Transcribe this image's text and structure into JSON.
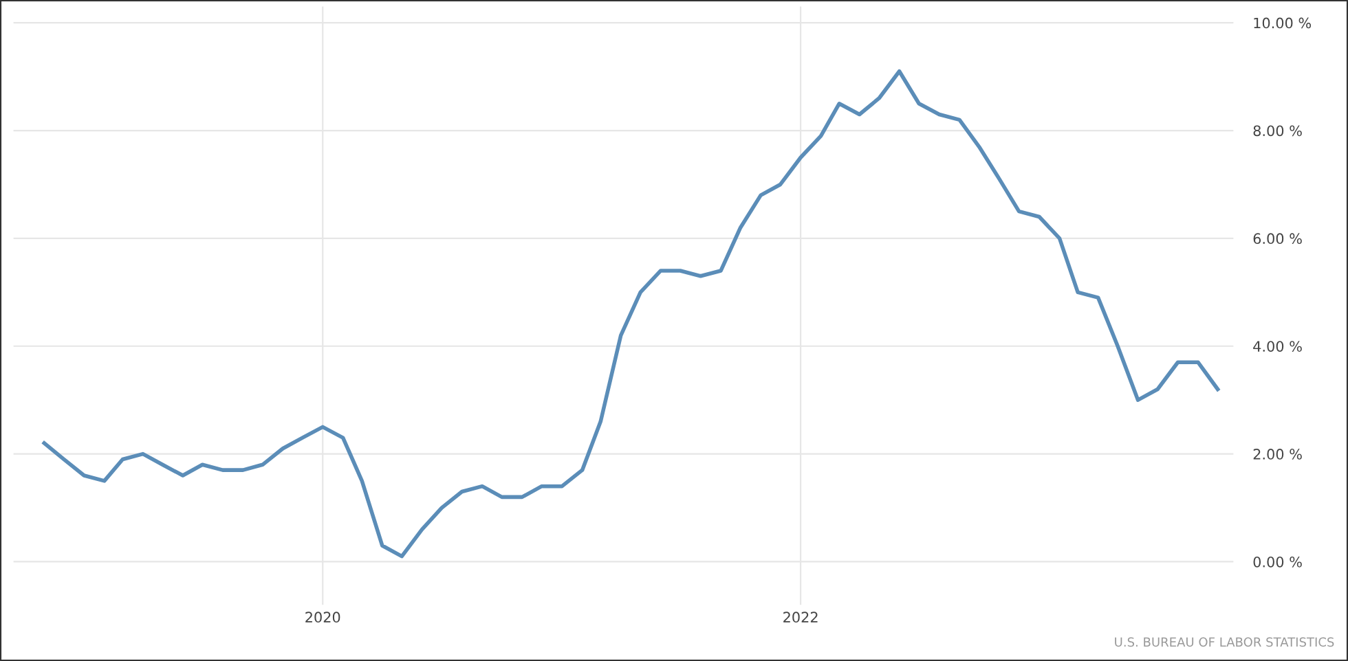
{
  "chart_data": {
    "type": "line",
    "x": [
      "2018-11",
      "2018-12",
      "2019-01",
      "2019-02",
      "2019-03",
      "2019-04",
      "2019-05",
      "2019-06",
      "2019-07",
      "2019-08",
      "2019-09",
      "2019-10",
      "2019-11",
      "2019-12",
      "2020-01",
      "2020-02",
      "2020-03",
      "2020-04",
      "2020-05",
      "2020-06",
      "2020-07",
      "2020-08",
      "2020-09",
      "2020-10",
      "2020-11",
      "2020-12",
      "2021-01",
      "2021-02",
      "2021-03",
      "2021-04",
      "2021-05",
      "2021-06",
      "2021-07",
      "2021-08",
      "2021-09",
      "2021-10",
      "2021-11",
      "2021-12",
      "2022-01",
      "2022-02",
      "2022-03",
      "2022-04",
      "2022-05",
      "2022-06",
      "2022-07",
      "2022-08",
      "2022-09",
      "2022-10",
      "2022-11",
      "2022-12",
      "2023-01",
      "2023-02",
      "2023-03",
      "2023-04",
      "2023-05",
      "2023-06",
      "2023-07",
      "2023-08",
      "2023-09",
      "2023-10"
    ],
    "series": [
      {
        "color": "#5b8db8",
        "values": [
          2.2,
          1.9,
          1.6,
          1.5,
          1.9,
          2.0,
          1.8,
          1.6,
          1.8,
          1.7,
          1.7,
          1.8,
          2.1,
          2.3,
          2.5,
          2.3,
          1.5,
          0.3,
          0.1,
          0.6,
          1.0,
          1.3,
          1.4,
          1.2,
          1.2,
          1.4,
          1.4,
          1.7,
          2.6,
          4.2,
          5.0,
          5.4,
          5.4,
          5.3,
          5.4,
          6.2,
          6.8,
          7.0,
          7.5,
          7.9,
          8.5,
          8.3,
          8.6,
          9.1,
          8.5,
          8.3,
          8.2,
          7.7,
          7.1,
          6.5,
          6.4,
          6.0,
          5.0,
          4.9,
          4.0,
          3.0,
          3.2,
          3.7,
          3.7,
          3.2
        ]
      }
    ],
    "xlim": [
      "2018-09-15",
      "2023-10-25"
    ],
    "xticks": [
      "2020",
      "2022"
    ],
    "ylim": [
      -0.8,
      10.3
    ],
    "yticks": [
      {
        "value": 0,
        "label": "0.00 %"
      },
      {
        "value": 2,
        "label": "2.00 %"
      },
      {
        "value": 4,
        "label": "4.00 %"
      },
      {
        "value": 6,
        "label": "6.00 %"
      },
      {
        "value": 8,
        "label": "8.00 %"
      },
      {
        "value": 10,
        "label": "10.00 %"
      }
    ],
    "grid": true,
    "line_style": "solid",
    "marker": "none",
    "annotations": [
      "U.S. BUREAU OF LABOR STATISTICS"
    ]
  }
}
